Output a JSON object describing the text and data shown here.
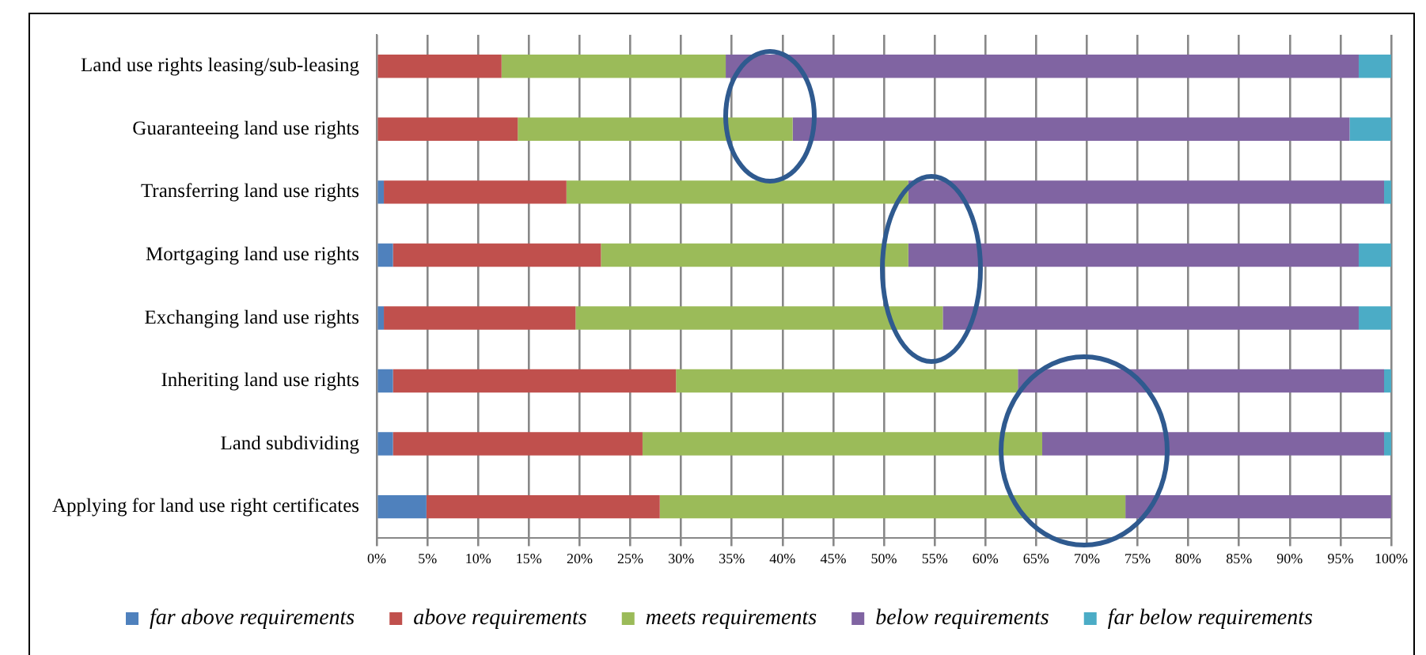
{
  "chart_data": {
    "type": "bar",
    "orientation": "horizontal",
    "stacked": true,
    "categories": [
      "Land use rights leasing/sub-leasing",
      "Guaranteeing land use rights",
      "Transferring land use rights",
      "Mortgaging land use rights",
      "Exchanging land use rights",
      "Inheriting land use rights",
      "Land subdividing",
      "Applying for land use right certificates"
    ],
    "series": [
      {
        "name": "far above requirements",
        "color": "#4f81bd",
        "values": [
          0,
          0,
          0.7,
          1.6,
          0.7,
          1.6,
          1.6,
          4.9
        ]
      },
      {
        "name": "above requirements",
        "color": "#c0504d",
        "values": [
          12.3,
          13.9,
          18.0,
          20.5,
          18.9,
          27.9,
          24.6,
          23.0
        ]
      },
      {
        "name": "meets requirements",
        "color": "#9bbb59",
        "values": [
          22.1,
          27.1,
          33.7,
          30.3,
          36.2,
          33.7,
          39.4,
          45.9
        ]
      },
      {
        "name": "below requirements",
        "color": "#8064a2",
        "values": [
          62.4,
          54.9,
          46.9,
          44.4,
          41.0,
          36.1,
          33.7,
          26.2
        ]
      },
      {
        "name": "far below requirements",
        "color": "#4bacc6",
        "values": [
          3.2,
          4.1,
          0.7,
          3.2,
          3.2,
          0.7,
          0.7,
          0
        ]
      }
    ],
    "xlim": [
      0,
      100
    ],
    "xticks": [
      {
        "value": 0,
        "label": "0%"
      },
      {
        "value": 5,
        "label": "5%"
      },
      {
        "value": 10,
        "label": "10%"
      },
      {
        "value": 15,
        "label": "15%"
      },
      {
        "value": 20,
        "label": "20%"
      },
      {
        "value": 25,
        "label": "25%"
      },
      {
        "value": 30,
        "label": "30%"
      },
      {
        "value": 35,
        "label": "35%"
      },
      {
        "value": 40,
        "label": "40%"
      },
      {
        "value": 45,
        "label": "45%"
      },
      {
        "value": 50,
        "label": "50%"
      },
      {
        "value": 55,
        "label": "55%"
      },
      {
        "value": 60,
        "label": "60%"
      },
      {
        "value": 65,
        "label": "65%"
      },
      {
        "value": 70,
        "label": "70%"
      },
      {
        "value": 75,
        "label": "75%"
      },
      {
        "value": 80,
        "label": "80%"
      },
      {
        "value": 85,
        "label": "85%"
      },
      {
        "value": 90,
        "label": "90%"
      },
      {
        "value": 95,
        "label": "95%"
      },
      {
        "value": 100,
        "label": "100%"
      }
    ],
    "grid": "x",
    "legend": "bottom"
  }
}
